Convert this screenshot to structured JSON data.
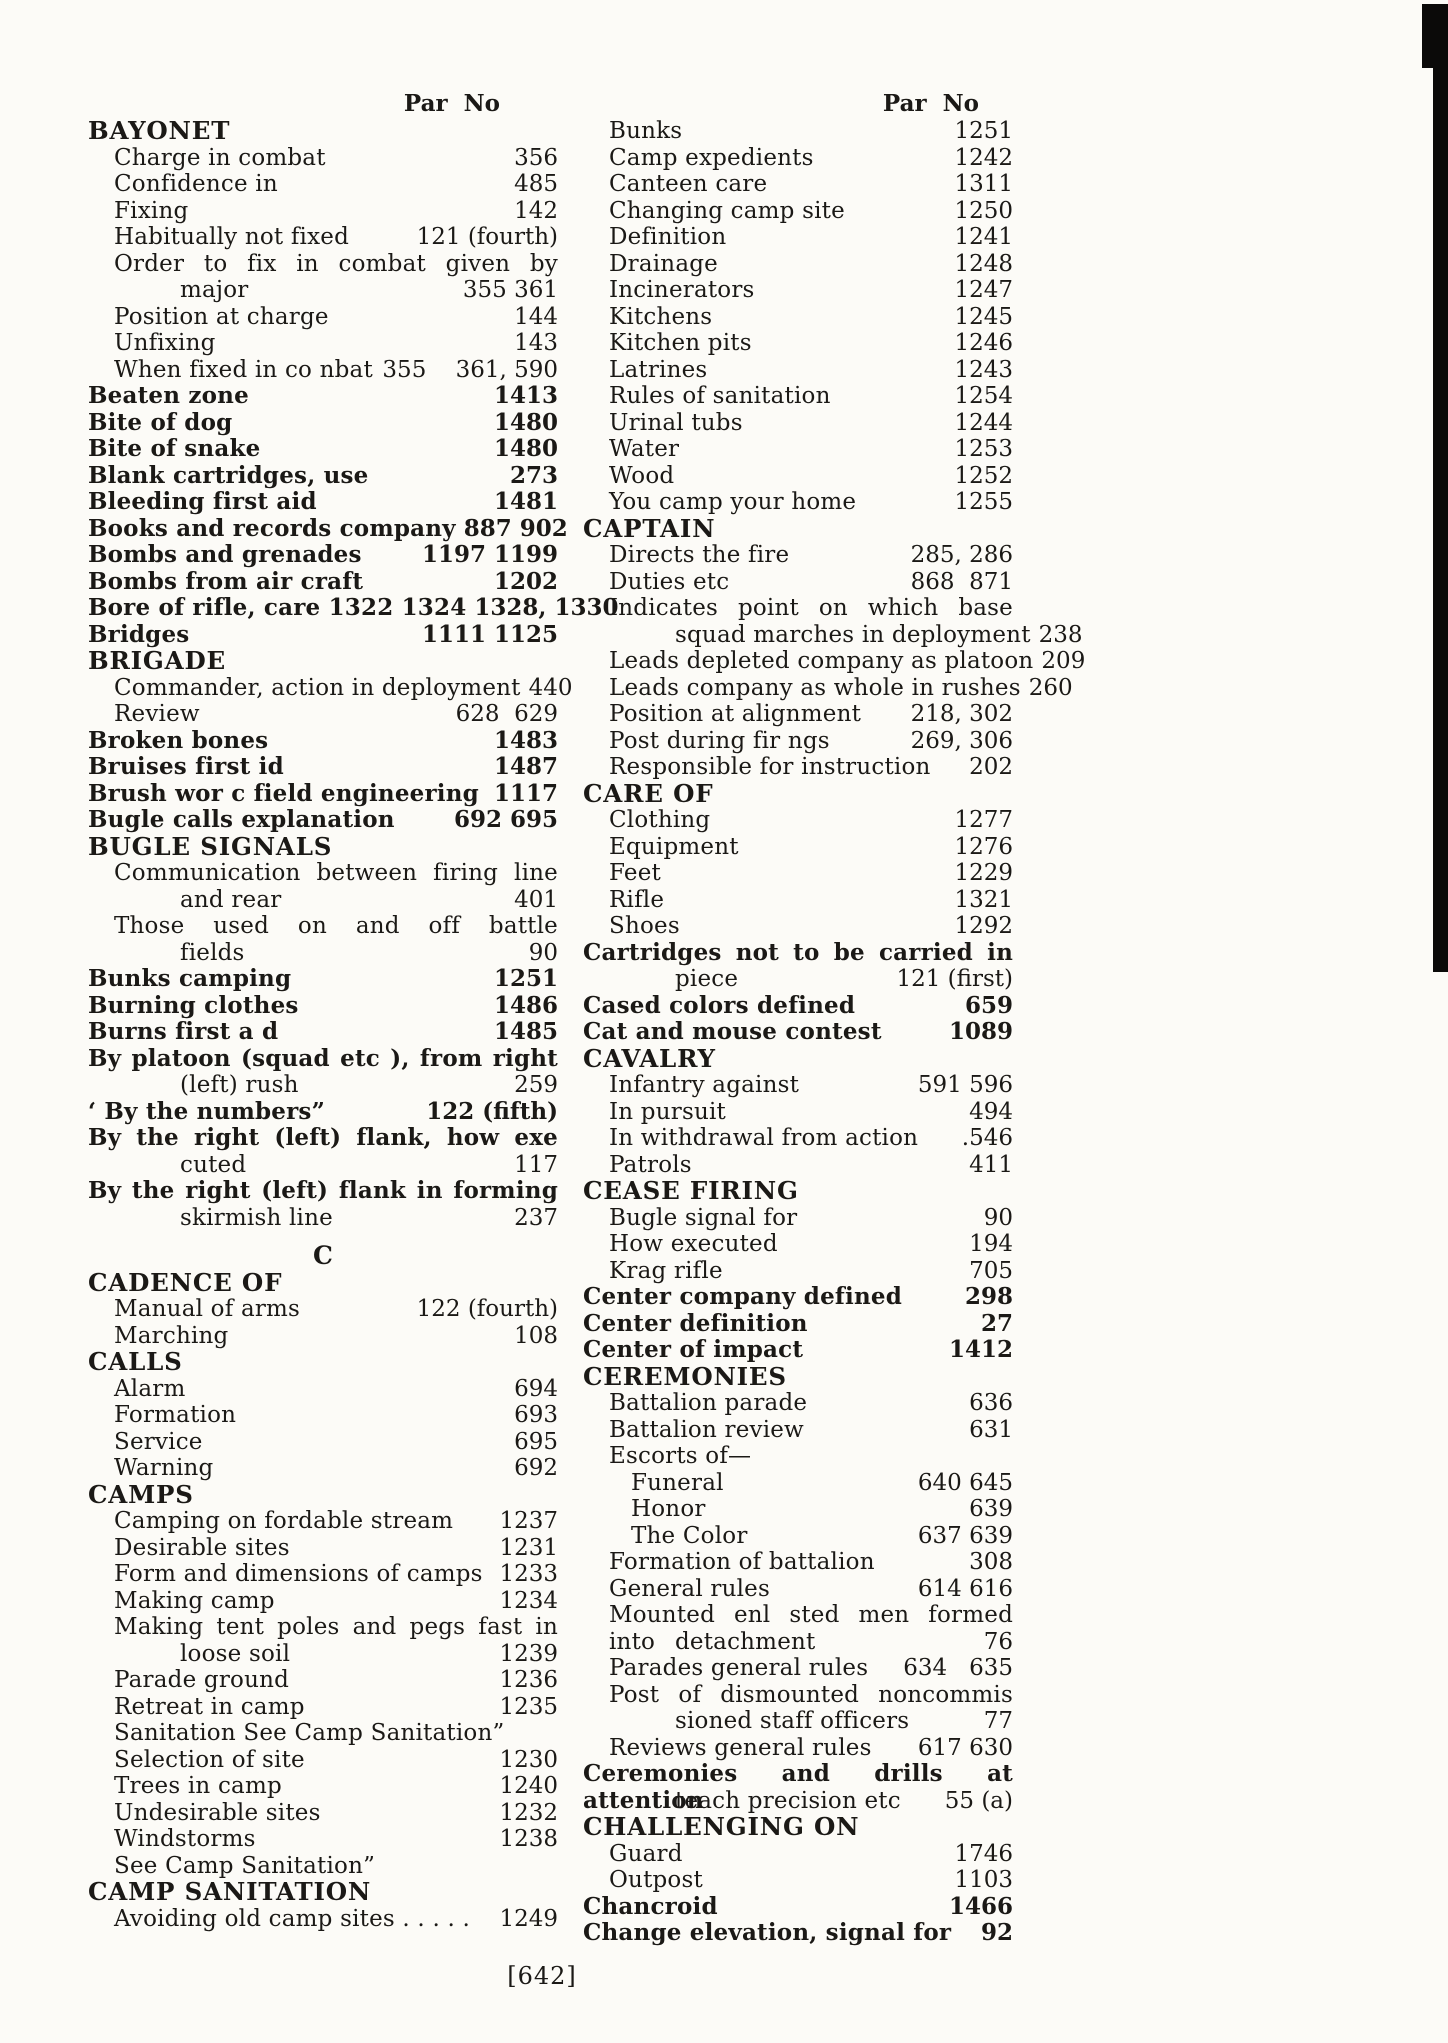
{
  "page": {
    "header_left": "Par  No",
    "header_right": "Par  No",
    "footer": "[642]"
  },
  "left_column": {
    "rows": [
      {
        "s": "h",
        "t": "BAYONET"
      },
      {
        "s": "s",
        "t": "Charge in combat",
        "n": "356"
      },
      {
        "s": "s",
        "t": "Confidence in",
        "n": "485"
      },
      {
        "s": "s",
        "t": "Fixing",
        "n": "142"
      },
      {
        "s": "s",
        "t": "Habitually not fixed",
        "n": "121 (fourth)"
      },
      {
        "s": "s",
        "j": 1,
        "t": "Order to fix in combat given by"
      },
      {
        "s": "c",
        "t": "major",
        "n": "355 361"
      },
      {
        "s": "s",
        "t": "Position at charge",
        "n": "144"
      },
      {
        "s": "s",
        "t": "Unfixing",
        "n": "143"
      },
      {
        "s": "s",
        "t": "When fixed in co nbat",
        "n": "355    361, 590"
      },
      {
        "s": "m",
        "t": "Beaten zone",
        "n": "1413"
      },
      {
        "s": "m",
        "t": "Bite of dog",
        "n": "1480"
      },
      {
        "s": "m",
        "t": "Bite of snake",
        "n": "1480"
      },
      {
        "s": "m",
        "t": "Blank cartridges, use",
        "n": "273"
      },
      {
        "s": "m",
        "t": "Bleeding first aid",
        "n": "1481"
      },
      {
        "s": "m",
        "t": "Books and records company",
        "n": "887 902"
      },
      {
        "s": "m",
        "t": "Bombs and grenades",
        "n": "1197 1199"
      },
      {
        "s": "m",
        "t": "Bombs from air craft",
        "n": "1202"
      },
      {
        "s": "m",
        "t": "Bore of rifle, care 1322 1324",
        "n": "1328, 1330"
      },
      {
        "s": "m",
        "t": "Bridges",
        "n": "1111 1125"
      },
      {
        "s": "h",
        "t": "BRIGADE"
      },
      {
        "s": "s",
        "t": "Commander, action in deployment",
        "n": "440"
      },
      {
        "s": "s",
        "t": "Review",
        "n": "628  629"
      },
      {
        "s": "m",
        "t": "Broken bones",
        "n": "1483"
      },
      {
        "s": "m",
        "t": "Bruises first id",
        "n": "1487"
      },
      {
        "s": "m",
        "t": "Brush wor c field engineering",
        "n": "1117"
      },
      {
        "s": "m",
        "t": "Bugle calls explanation",
        "n": "692 695"
      },
      {
        "s": "h",
        "t": "BUGLE SIGNALS"
      },
      {
        "s": "s",
        "j": 1,
        "t": "Communication between firing line"
      },
      {
        "s": "c",
        "t": "and rear",
        "n": "401"
      },
      {
        "s": "s",
        "j": 1,
        "t": "Those used on and off battle"
      },
      {
        "s": "c",
        "t": "fields",
        "n": "90"
      },
      {
        "s": "m",
        "t": "Bunks camping",
        "n": "1251"
      },
      {
        "s": "m",
        "t": "Burning clothes",
        "n": "1486"
      },
      {
        "s": "m",
        "t": "Burns first a d",
        "n": "1485"
      },
      {
        "s": "m",
        "j": 1,
        "t": "By platoon (squad etc ), from right"
      },
      {
        "s": "c",
        "t": "(left) rush",
        "n": "259"
      },
      {
        "s": "m",
        "t": "‘ By the numbers”",
        "n": "122 (fifth)"
      },
      {
        "s": "m",
        "j": 1,
        "t": "By the right (left) flank, how exe"
      },
      {
        "s": "c",
        "t": "cuted",
        "n": "117"
      },
      {
        "s": "m",
        "j": 1,
        "t": "By the right (left) flank in forming"
      },
      {
        "s": "c",
        "t": "skirmish line",
        "n": "237"
      },
      {
        "s": "L",
        "t": "C"
      },
      {
        "s": "h",
        "t": "CADENCE OF"
      },
      {
        "s": "s",
        "t": "Manual of arms",
        "n": "122 (fourth)"
      },
      {
        "s": "s",
        "t": "Marching",
        "n": "108"
      },
      {
        "s": "h",
        "t": "CALLS"
      },
      {
        "s": "s",
        "t": "Alarm",
        "n": "694"
      },
      {
        "s": "s",
        "t": "Formation",
        "n": "693"
      },
      {
        "s": "s",
        "t": "Service",
        "n": "695"
      },
      {
        "s": "s",
        "t": "Warning",
        "n": "692"
      },
      {
        "s": "h",
        "t": "CAMPS"
      },
      {
        "s": "s",
        "t": "Camping on fordable stream",
        "n": "1237"
      },
      {
        "s": "s",
        "t": "Desirable sites",
        "n": "1231"
      },
      {
        "s": "s",
        "t": "Form and dimensions of camps",
        "n": "1233"
      },
      {
        "s": "s",
        "t": "Making camp",
        "n": "1234"
      },
      {
        "s": "s",
        "j": 1,
        "t": "Making tent poles and pegs fast in"
      },
      {
        "s": "c",
        "t": "loose soil",
        "n": "1239"
      },
      {
        "s": "s",
        "t": "Parade ground",
        "n": "1236"
      },
      {
        "s": "s",
        "t": "Retreat in camp",
        "n": "1235"
      },
      {
        "s": "s",
        "t": "Sanitation  See  Camp Sanitation”"
      },
      {
        "s": "s",
        "t": "Selection of site",
        "n": "1230"
      },
      {
        "s": "s",
        "t": "Trees in camp",
        "n": "1240"
      },
      {
        "s": "s",
        "t": "Undesirable sites",
        "n": "1232"
      },
      {
        "s": "s",
        "t": "Windstorms",
        "n": "1238"
      },
      {
        "s": "s",
        "t": "See  Camp Sanitation”"
      },
      {
        "s": "h",
        "t": "CAMP SANITATION"
      },
      {
        "s": "s",
        "t": "Avoiding old camp sites  . . . . .",
        "n": "1249"
      }
    ]
  },
  "right_column": {
    "rows": [
      {
        "s": "s",
        "t": "Bunks",
        "n": "1251"
      },
      {
        "s": "s",
        "t": "Camp expedients",
        "n": "1242"
      },
      {
        "s": "s",
        "t": "Canteen care",
        "n": "1311"
      },
      {
        "s": "s",
        "t": "Changing camp site",
        "n": "1250"
      },
      {
        "s": "s",
        "t": "Definition",
        "n": "1241"
      },
      {
        "s": "s",
        "t": "Drainage",
        "n": "1248"
      },
      {
        "s": "s",
        "t": "Incinerators",
        "n": "1247"
      },
      {
        "s": "s",
        "t": "Kitchens",
        "n": "1245"
      },
      {
        "s": "s",
        "t": "Kitchen pits",
        "n": "1246"
      },
      {
        "s": "s",
        "t": "Latrines",
        "n": "1243"
      },
      {
        "s": "s",
        "t": "Rules of sanitation",
        "n": "1254"
      },
      {
        "s": "s",
        "t": "Urinal tubs",
        "n": "1244"
      },
      {
        "s": "s",
        "t": "Water",
        "n": "1253"
      },
      {
        "s": "s",
        "t": "Wood",
        "n": "1252"
      },
      {
        "s": "s",
        "t": "You camp your home",
        "n": "1255"
      },
      {
        "s": "h",
        "t": "CAPTAIN"
      },
      {
        "s": "s",
        "t": "Directs the fire",
        "n": "285, 286"
      },
      {
        "s": "s",
        "t": "Duties etc",
        "n": "868  871"
      },
      {
        "s": "s",
        "j": 1,
        "t": "Indicates point on which base"
      },
      {
        "s": "c",
        "t": "squad marches in deployment",
        "n": "238"
      },
      {
        "s": "s",
        "t": "Leads depleted company as platoon",
        "n": "209"
      },
      {
        "s": "s",
        "t": "Leads company as whole in rushes",
        "n": "260"
      },
      {
        "s": "s",
        "t": "Position at alignment",
        "n": "218, 302"
      },
      {
        "s": "s",
        "t": "Post during fir ngs",
        "n": "269, 306"
      },
      {
        "s": "s",
        "t": "Responsible for instruction",
        "n": "202"
      },
      {
        "s": "h",
        "t": "CARE OF"
      },
      {
        "s": "s",
        "t": "Clothing",
        "n": "1277"
      },
      {
        "s": "s",
        "t": "Equipment",
        "n": "1276"
      },
      {
        "s": "s",
        "t": "Feet",
        "n": "1229"
      },
      {
        "s": "s",
        "t": "Rifle",
        "n": "1321"
      },
      {
        "s": "s",
        "t": "Shoes",
        "n": "1292"
      },
      {
        "s": "m",
        "j": 1,
        "t": "Cartridges not to be carried in"
      },
      {
        "s": "c",
        "t": "piece",
        "n": "121 (first)"
      },
      {
        "s": "m",
        "t": "Cased colors defined",
        "n": "659"
      },
      {
        "s": "m",
        "t": "Cat and mouse contest",
        "n": "1089"
      },
      {
        "s": "h",
        "t": "CAVALRY"
      },
      {
        "s": "s",
        "t": "Infantry against",
        "n": "591 596"
      },
      {
        "s": "s",
        "t": "In pursuit",
        "n": "494"
      },
      {
        "s": "s",
        "t": "In withdrawal from action",
        "n": ".546"
      },
      {
        "s": "s",
        "t": "Patrols",
        "n": "411"
      },
      {
        "s": "h",
        "t": "CEASE FIRING"
      },
      {
        "s": "s",
        "t": "Bugle signal for",
        "n": "90"
      },
      {
        "s": "s",
        "t": "How executed",
        "n": "194"
      },
      {
        "s": "s",
        "t": "Krag rifle",
        "n": "705"
      },
      {
        "s": "m",
        "t": "Center company defined",
        "n": "298"
      },
      {
        "s": "m",
        "t": "Center definition",
        "n": "27"
      },
      {
        "s": "m",
        "t": "Center of impact",
        "n": "1412"
      },
      {
        "s": "h",
        "t": "CEREMONIES"
      },
      {
        "s": "s",
        "t": "Battalion parade",
        "n": "636"
      },
      {
        "s": "s",
        "t": "Battalion review",
        "n": "631"
      },
      {
        "s": "s",
        "t": "Escorts of—"
      },
      {
        "s": "s2",
        "t": "Funeral",
        "n": "640 645"
      },
      {
        "s": "s2",
        "t": "Honor",
        "n": "639"
      },
      {
        "s": "s2",
        "t": "The Color",
        "n": "637 639"
      },
      {
        "s": "s",
        "t": "Formation of battalion",
        "n": "308"
      },
      {
        "s": "s",
        "t": "General rules",
        "n": "614 616"
      },
      {
        "s": "s",
        "j": 1,
        "t": "Mounted enl sted men formed into"
      },
      {
        "s": "c",
        "t": "detachment",
        "n": "76"
      },
      {
        "s": "s",
        "t": "Parades general rules",
        "n": "634   635"
      },
      {
        "s": "s",
        "j": 1,
        "t": "Post of dismounted noncommis"
      },
      {
        "s": "c",
        "t": "sioned staff officers",
        "n": "77"
      },
      {
        "s": "s",
        "t": "Reviews general rules",
        "n": "617 630"
      },
      {
        "s": "m",
        "j": 1,
        "t": "Ceremonies and drills at attention"
      },
      {
        "s": "c",
        "t": "teach precision etc",
        "n": "55 (a)"
      },
      {
        "s": "h",
        "t": "CHALLENGING ON"
      },
      {
        "s": "s",
        "t": "Guard",
        "n": "1746"
      },
      {
        "s": "s",
        "t": "Outpost",
        "n": "1103"
      },
      {
        "s": "m",
        "t": "Chancroid",
        "n": "1466"
      },
      {
        "s": "m",
        "t": "Change elevation, signal for",
        "n": "92"
      }
    ]
  }
}
